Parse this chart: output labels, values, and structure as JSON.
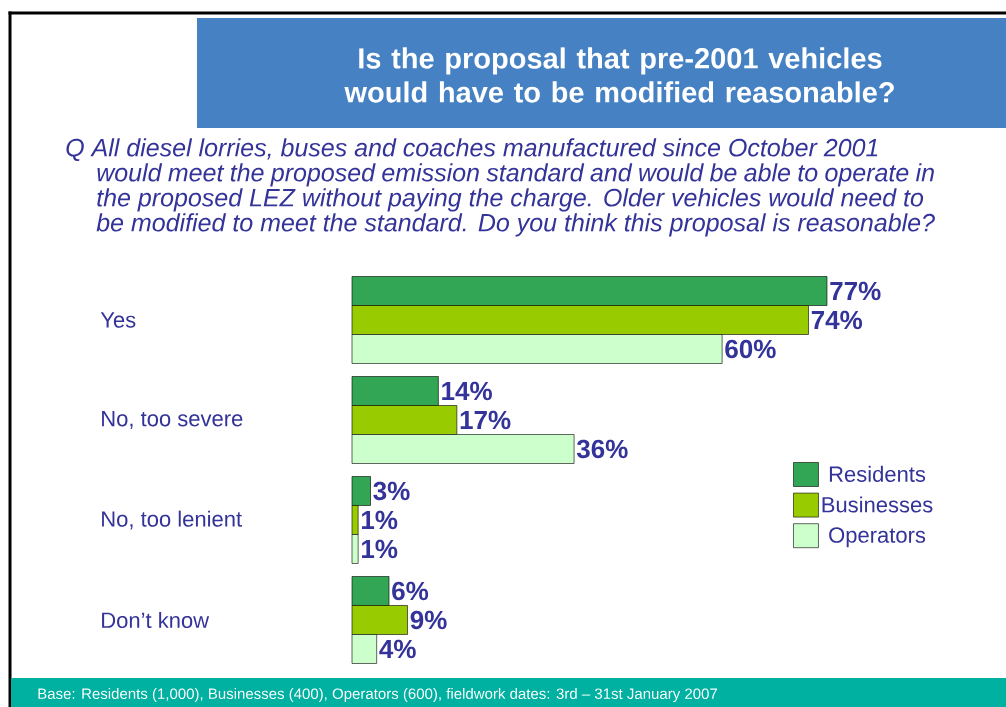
{
  "chart_data": {
    "type": "bar",
    "orientation": "horizontal",
    "title": "Is the proposal that pre-2001 vehicles would have to be modified reasonable?",
    "subtitle": "Q All diesel lorries, buses and coaches manufactured since October 2001 would meet the proposed emission standard and would be able to operate in the proposed LEZ without paying the charge. Older vehicles would need to be modified to meet the standard. Do you think this proposal is reasonable?",
    "categories": [
      "Yes",
      "No, too severe",
      "No, too lenient",
      "Don’t know"
    ],
    "series": [
      {
        "name": "Residents",
        "color": "#33a656",
        "values": [
          77,
          14,
          3,
          6
        ],
        "value_labels": [
          "77%",
          "14%",
          "3%",
          "6%"
        ]
      },
      {
        "name": "Businesses",
        "color": "#99cc00",
        "values": [
          74,
          17,
          1,
          9
        ],
        "value_labels": [
          "74%",
          "17%",
          "1%",
          "9%"
        ]
      },
      {
        "name": "Operators",
        "color": "#ccffcc",
        "values": [
          60,
          36,
          1,
          4
        ],
        "value_labels": [
          "60%",
          "36%",
          "1%",
          "4%"
        ]
      }
    ],
    "legend": "right",
    "annotations": [
      "Base: Residents (1,000), Businesses (400), Operators (600), fieldwork dates: 3rd – 31st January 2007"
    ]
  }
}
